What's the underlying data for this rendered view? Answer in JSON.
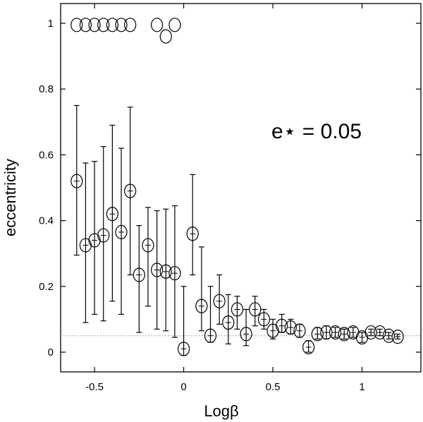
{
  "chart_data": {
    "type": "scatter",
    "xlabel": "Logβ",
    "ylabel": "eccentricity",
    "xlim": [
      -0.69,
      1.33
    ],
    "ylim": [
      -0.06,
      1.06
    ],
    "xticks": [
      -0.5,
      0,
      0.5,
      1
    ],
    "xtick_labels": [
      "-0.5",
      "0",
      "0.5",
      "1"
    ],
    "yticks": [
      0,
      0.2,
      0.4,
      0.6,
      0.8,
      1
    ],
    "ytick_labels": [
      "0",
      "0.2",
      "0.4",
      "0.6",
      "0.8",
      "1"
    ],
    "grid": false,
    "reference_line": {
      "y": 0.05,
      "style": "dotted"
    },
    "annotation": "e⋆  =  0.05",
    "series": [
      {
        "points": [
          {
            "x": -0.6,
            "y": 0.52,
            "lo": 0.295,
            "hi": 0.75
          },
          {
            "x": -0.55,
            "y": 0.325,
            "lo": 0.09,
            "hi": 0.575
          },
          {
            "x": -0.5,
            "y": 0.34,
            "lo": 0.115,
            "hi": 0.58
          },
          {
            "x": -0.45,
            "y": 0.355,
            "lo": 0.095,
            "hi": 0.625
          },
          {
            "x": -0.4,
            "y": 0.42,
            "lo": 0.155,
            "hi": 0.69
          },
          {
            "x": -0.35,
            "y": 0.365,
            "lo": 0.115,
            "hi": 0.62
          },
          {
            "x": -0.3,
            "y": 0.49,
            "lo": 0.235,
            "hi": 0.745
          },
          {
            "x": -0.25,
            "y": 0.235,
            "lo": 0.06,
            "hi": 0.385
          },
          {
            "x": -0.2,
            "y": 0.325,
            "lo": 0.14,
            "hi": 0.44
          },
          {
            "x": -0.15,
            "y": 0.25,
            "lo": 0.07,
            "hi": 0.43
          },
          {
            "x": -0.1,
            "y": 0.245,
            "lo": 0.065,
            "hi": 0.435
          },
          {
            "x": -0.05,
            "y": 0.24,
            "lo": 0.045,
            "hi": 0.445
          },
          {
            "x": 0.0,
            "y": 0.01,
            "lo": -0.01,
            "hi": 0.2
          },
          {
            "x": 0.05,
            "y": 0.36,
            "lo": 0.235,
            "hi": 0.54
          },
          {
            "x": 0.1,
            "y": 0.14,
            "lo": 0.065,
            "hi": 0.32
          },
          {
            "x": 0.15,
            "y": 0.05,
            "lo": 0.03,
            "hi": 0.2
          },
          {
            "x": 0.2,
            "y": 0.155,
            "lo": 0.085,
            "hi": 0.235
          },
          {
            "x": 0.25,
            "y": 0.09,
            "lo": 0.025,
            "hi": 0.175
          },
          {
            "x": 0.3,
            "y": 0.13,
            "lo": 0.07,
            "hi": 0.17
          },
          {
            "x": 0.35,
            "y": 0.055,
            "lo": 0.02,
            "hi": 0.13
          },
          {
            "x": 0.4,
            "y": 0.13,
            "lo": 0.08,
            "hi": 0.17
          },
          {
            "x": 0.45,
            "y": 0.1,
            "lo": 0.07,
            "hi": 0.13
          },
          {
            "x": 0.5,
            "y": 0.065,
            "lo": 0.04,
            "hi": 0.1
          },
          {
            "x": 0.55,
            "y": 0.08,
            "lo": 0.06,
            "hi": 0.115
          },
          {
            "x": 0.6,
            "y": 0.075,
            "lo": 0.055,
            "hi": 0.1
          },
          {
            "x": 0.65,
            "y": 0.065,
            "lo": 0.045,
            "hi": 0.085
          },
          {
            "x": 0.7,
            "y": 0.015,
            "lo": 0.0,
            "hi": 0.035
          },
          {
            "x": 0.75,
            "y": 0.055,
            "lo": 0.04,
            "hi": 0.075
          },
          {
            "x": 0.8,
            "y": 0.06,
            "lo": 0.04,
            "hi": 0.08
          },
          {
            "x": 0.85,
            "y": 0.06,
            "lo": 0.045,
            "hi": 0.075
          },
          {
            "x": 0.9,
            "y": 0.055,
            "lo": 0.04,
            "hi": 0.07
          },
          {
            "x": 0.95,
            "y": 0.06,
            "lo": 0.045,
            "hi": 0.075
          },
          {
            "x": 1.0,
            "y": 0.045,
            "lo": 0.03,
            "hi": 0.06
          },
          {
            "x": 1.05,
            "y": 0.06,
            "lo": 0.05,
            "hi": 0.07
          },
          {
            "x": 1.1,
            "y": 0.06,
            "lo": 0.05,
            "hi": 0.07
          },
          {
            "x": 1.15,
            "y": 0.05,
            "lo": 0.04,
            "hi": 0.06
          },
          {
            "x": 1.2,
            "y": 0.047,
            "lo": 0.04,
            "hi": 0.055
          }
        ]
      },
      {
        "points": [
          {
            "x": -0.6,
            "y": 0.995
          },
          {
            "x": -0.55,
            "y": 0.995
          },
          {
            "x": -0.5,
            "y": 0.995
          },
          {
            "x": -0.45,
            "y": 0.995
          },
          {
            "x": -0.4,
            "y": 0.995
          },
          {
            "x": -0.35,
            "y": 0.995
          },
          {
            "x": -0.3,
            "y": 0.995
          },
          {
            "x": -0.15,
            "y": 0.995
          },
          {
            "x": -0.1,
            "y": 0.96
          },
          {
            "x": -0.05,
            "y": 0.995
          }
        ]
      }
    ]
  }
}
